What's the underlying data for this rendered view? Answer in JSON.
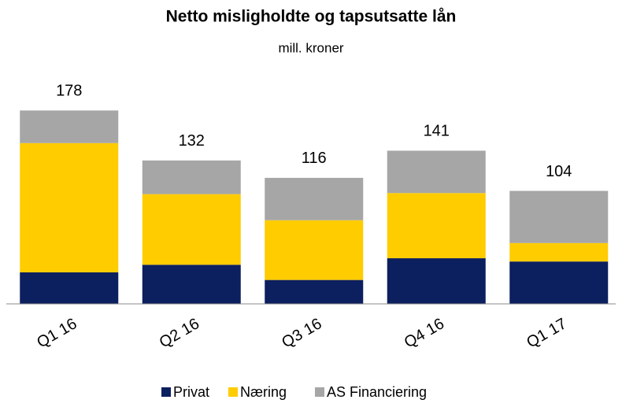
{
  "chart_data": {
    "type": "stacked_bar",
    "title": "Netto misligholdte og tapsutsatte lån",
    "subtitle": "mill. kroner",
    "categories": [
      "Q1 16",
      "Q2 16",
      "Q3 16",
      "Q4 16",
      "Q1 17"
    ],
    "series": [
      {
        "name": "Privat",
        "color": "#0c1f5e",
        "values": [
          29,
          36,
          22,
          42,
          39
        ]
      },
      {
        "name": "Næring",
        "color": "#ffcc00",
        "values": [
          119,
          65,
          55,
          60,
          17
        ]
      },
      {
        "name": "AS Financiering",
        "color": "#a6a6a6",
        "values": [
          30,
          31,
          39,
          39,
          48
        ]
      }
    ],
    "totals": [
      178,
      132,
      116,
      141,
      104
    ],
    "ylim": [
      0,
      200
    ],
    "legend": "bottom"
  }
}
